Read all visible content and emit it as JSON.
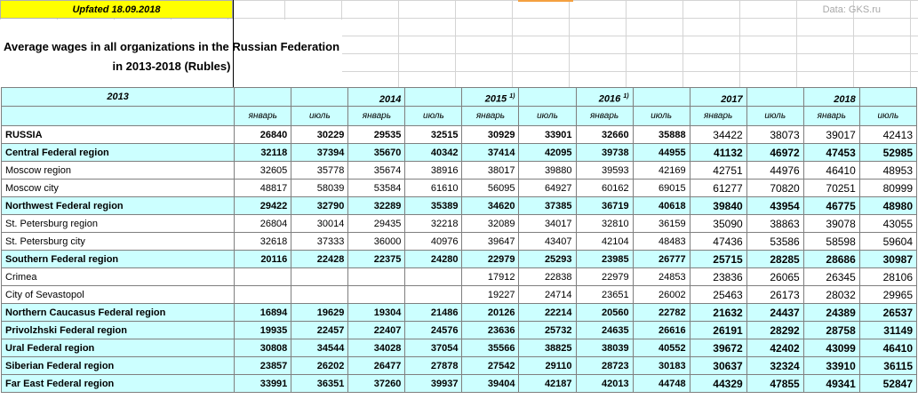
{
  "updated": "Upfated 18.09.2018",
  "source": "Data: GKS.ru",
  "title_line1": "Average wages in all organizations in the Russian Federation",
  "title_line2": "in 2013-2018 (Rubles)",
  "years": {
    "y2013": "2013",
    "y2014": "2014",
    "y2015": "2015",
    "y2015_note": "1)",
    "y2016": "2016",
    "y2016_note": "1)",
    "y2017": "2017",
    "y2018": "2018"
  },
  "months": [
    "январь",
    "июль",
    "январь",
    "июль",
    "январь",
    "июль",
    "январь",
    "июль",
    "январь",
    "июль",
    "январь",
    "июль"
  ],
  "rows": [
    {
      "name": "RUSSIA",
      "highlight": false,
      "bold": true,
      "values": [
        "26840",
        "30229",
        "29535",
        "32515",
        "30929",
        "33901",
        "32660",
        "35888",
        "34422",
        "38073",
        "39017",
        "42413"
      ]
    },
    {
      "name": "Central Federal region",
      "highlight": true,
      "bold": true,
      "values": [
        "32118",
        "37394",
        "35670",
        "40342",
        "37414",
        "42095",
        "39738",
        "44955",
        "41132",
        "46972",
        "47453",
        "52985"
      ]
    },
    {
      "name": "Moscow region",
      "highlight": false,
      "bold": false,
      "values": [
        "32605",
        "35778",
        "35674",
        "38916",
        "38017",
        "39880",
        "39593",
        "42169",
        "42751",
        "44976",
        "46410",
        "48953"
      ]
    },
    {
      "name": "Moscow city",
      "highlight": false,
      "bold": false,
      "values": [
        "48817",
        "58039",
        "53584",
        "61610",
        "56095",
        "64927",
        "60162",
        "69015",
        "61277",
        "70820",
        "70251",
        "80999"
      ]
    },
    {
      "name": "Northwest Federal region",
      "highlight": true,
      "bold": true,
      "values": [
        "29422",
        "32790",
        "32289",
        "35389",
        "34620",
        "37385",
        "36719",
        "40618",
        "39840",
        "43954",
        "46775",
        "48980"
      ]
    },
    {
      "name": "St. Petersburg region",
      "highlight": false,
      "bold": false,
      "values": [
        "26804",
        "30014",
        "29435",
        "32218",
        "32089",
        "34017",
        "32810",
        "36159",
        "35090",
        "38863",
        "39078",
        "43055"
      ]
    },
    {
      "name": "St. Petersburg city",
      "highlight": false,
      "bold": false,
      "values": [
        "32618",
        "37333",
        "36000",
        "40976",
        "39647",
        "43407",
        "42104",
        "48483",
        "47436",
        "53586",
        "58598",
        "59604"
      ]
    },
    {
      "name": "Southern Federal region",
      "highlight": true,
      "bold": true,
      "values": [
        "20116",
        "22428",
        "22375",
        "24280",
        "22979",
        "25293",
        "23985",
        "26777",
        "25715",
        "28285",
        "28686",
        "30987"
      ]
    },
    {
      "name": "Crimea",
      "highlight": false,
      "bold": false,
      "values": [
        "",
        "",
        "",
        "",
        "17912",
        "22838",
        "22979",
        "24853",
        "23836",
        "26065",
        "26345",
        "28106"
      ]
    },
    {
      "name": "City of Sevastopol",
      "highlight": false,
      "bold": false,
      "values": [
        "",
        "",
        "",
        "",
        "19227",
        "24714",
        "23651",
        "26002",
        "25463",
        "26173",
        "28032",
        "29965"
      ]
    },
    {
      "name": "Northern Caucasus Federal region",
      "highlight": true,
      "bold": true,
      "values": [
        "16894",
        "19629",
        "19304",
        "21486",
        "20126",
        "22214",
        "20560",
        "22782",
        "21632",
        "24437",
        "24389",
        "26537"
      ]
    },
    {
      "name": "Privolzhski Federal region",
      "highlight": true,
      "bold": true,
      "values": [
        "19935",
        "22457",
        "22407",
        "24576",
        "23636",
        "25732",
        "24635",
        "26616",
        "26191",
        "28292",
        "28758",
        "31149"
      ]
    },
    {
      "name": "Ural Federal region",
      "highlight": true,
      "bold": true,
      "values": [
        "30808",
        "34544",
        "34028",
        "37054",
        "35566",
        "38825",
        "38039",
        "40552",
        "39672",
        "42402",
        "43099",
        "46410"
      ]
    },
    {
      "name": "Siberian Federal region",
      "highlight": true,
      "bold": true,
      "values": [
        "23857",
        "26202",
        "26477",
        "27878",
        "27542",
        "29110",
        "28723",
        "30183",
        "30637",
        "32324",
        "33910",
        "36115"
      ]
    },
    {
      "name": "Far East Federal region",
      "highlight": true,
      "bold": true,
      "values": [
        "33991",
        "36351",
        "37260",
        "39937",
        "39404",
        "42187",
        "42013",
        "44748",
        "44329",
        "47855",
        "49341",
        "52847"
      ]
    }
  ]
}
